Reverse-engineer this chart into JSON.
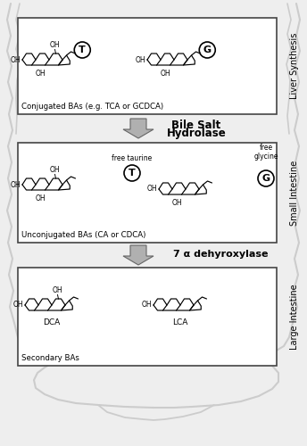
{
  "bg_color": "#eeeeee",
  "box_color": "#ffffff",
  "box_edge_color": "#444444",
  "arrow_facecolor": "#b0b0b0",
  "arrow_edgecolor": "#666666",
  "body_outline_color": "#cccccc",
  "text_color": "#000000",
  "box1_label": "Conjugated BAs (e.g. TCA or GCDCA)",
  "box2_label": "Unconjugated BAs (CA or CDCA)",
  "box3_label": "Secondary BAs",
  "arrow1_label_line1": "Bile Salt",
  "arrow1_label_line2": "Hydrolase",
  "arrow2_label": "7 α dehyroxylase",
  "right_label1": "Liver Synthesis",
  "right_label2": "Small Intestine",
  "right_label3": "Large Intestine",
  "fig_width": 3.44,
  "fig_height": 5.0,
  "dpi": 100
}
